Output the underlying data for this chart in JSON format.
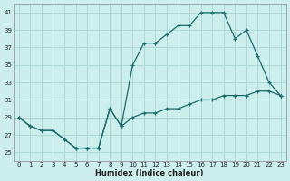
{
  "xlabel": "Humidex (Indice chaleur)",
  "background_color": "#cceeed",
  "grid_color": "#aed8d8",
  "line_color": "#1a6b6b",
  "xlim": [
    -0.5,
    23.5
  ],
  "ylim": [
    24,
    42
  ],
  "yticks": [
    25,
    27,
    29,
    31,
    33,
    35,
    37,
    39,
    41
  ],
  "xticks": [
    0,
    1,
    2,
    3,
    4,
    5,
    6,
    7,
    8,
    9,
    10,
    11,
    12,
    13,
    14,
    15,
    16,
    17,
    18,
    19,
    20,
    21,
    22,
    23
  ],
  "series1_x": [
    0,
    1,
    2,
    3,
    4,
    5,
    6,
    7,
    8,
    9,
    10,
    11,
    12,
    13,
    14,
    15,
    16,
    17,
    18,
    19,
    20,
    21,
    22,
    23
  ],
  "series1_y": [
    29,
    28,
    27.5,
    27.5,
    26.5,
    25.5,
    25.5,
    25.5,
    30,
    28,
    29,
    29.5,
    29.5,
    30,
    30,
    30.5,
    31,
    31,
    31.5,
    31.5,
    31.5,
    32,
    32,
    31.5
  ],
  "series2_x": [
    0,
    1,
    2,
    3,
    4,
    5,
    6,
    7,
    8,
    9,
    10,
    11,
    12,
    13,
    14,
    15,
    16,
    17,
    18,
    19,
    20,
    21,
    22,
    23
  ],
  "series2_y": [
    29,
    28,
    27.5,
    27.5,
    26.5,
    25.5,
    25.5,
    25.5,
    30,
    28,
    35,
    37.5,
    37.5,
    38.5,
    39.5,
    39.5,
    41,
    41,
    41,
    38,
    39,
    36,
    33,
    31.5
  ]
}
